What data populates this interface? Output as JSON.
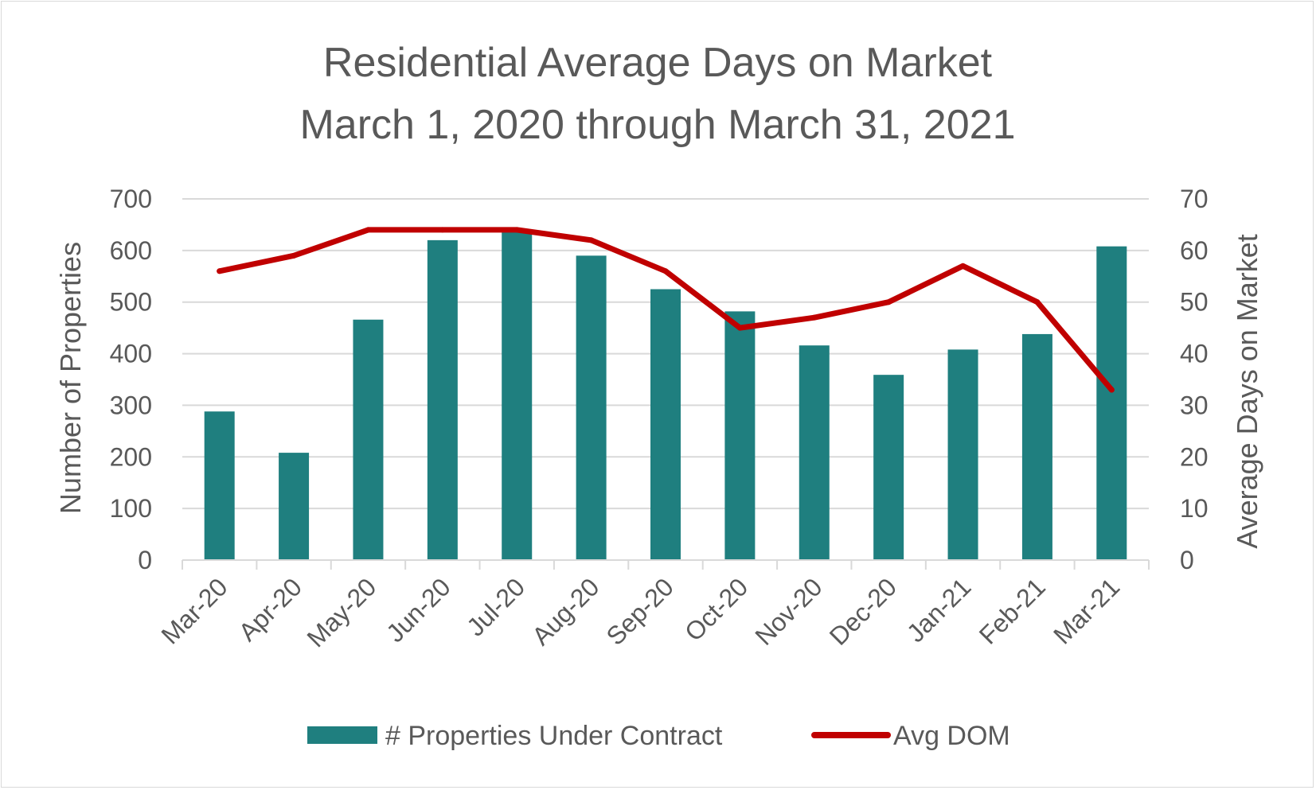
{
  "chart_data": {
    "type": "bar",
    "title": "Residential Average Days on Market",
    "subtitle": "March 1, 2020 through March 31, 2021",
    "categories": [
      "Mar-20",
      "Apr-20",
      "May-20",
      "Jun-20",
      "Jul-20",
      "Aug-20",
      "Sep-20",
      "Oct-20",
      "Nov-20",
      "Dec-20",
      "Jan-21",
      "Feb-21",
      "Mar-21"
    ],
    "series": [
      {
        "name": "# Properties Under Contract",
        "type": "bar",
        "axis": "left",
        "color": "#1f7f7f",
        "values": [
          288,
          208,
          466,
          620,
          637,
          590,
          525,
          482,
          416,
          359,
          408,
          438,
          608
        ]
      },
      {
        "name": "Avg DOM",
        "type": "line",
        "axis": "right",
        "color": "#c00000",
        "values": [
          56,
          59,
          64,
          64,
          64,
          62,
          56,
          45,
          47,
          50,
          57,
          50,
          33
        ]
      }
    ],
    "ylabel": "Number of Properties",
    "ylim": [
      0,
      700
    ],
    "yticks": [
      "0",
      "100",
      "200",
      "300",
      "400",
      "500",
      "600",
      "700"
    ],
    "y2label": "Average Days on Market",
    "y2lim": [
      0,
      70
    ],
    "y2ticks": [
      "0",
      "10",
      "20",
      "30",
      "40",
      "50",
      "60",
      "70"
    ],
    "grid": true,
    "legend_position": "bottom"
  }
}
